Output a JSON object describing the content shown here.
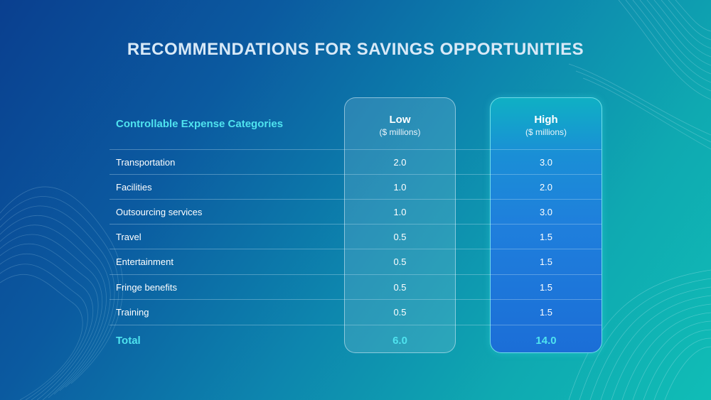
{
  "title": "RECOMMENDATIONS FOR SAVINGS OPPORTUNITIES",
  "table": {
    "category_header": "Controllable Expense Categories",
    "low_header": "Low",
    "low_sub": "($ millions)",
    "high_header": "High",
    "high_sub": "($ millions)",
    "rows": [
      {
        "name": "Transportation",
        "low": "2.0",
        "high": "3.0"
      },
      {
        "name": "Facilities",
        "low": "1.0",
        "high": "2.0"
      },
      {
        "name": "Outsourcing services",
        "low": "1.0",
        "high": "3.0"
      },
      {
        "name": "Travel",
        "low": "0.5",
        "high": "1.5"
      },
      {
        "name": "Entertainment",
        "low": "0.5",
        "high": "1.5"
      },
      {
        "name": "Fringe benefits",
        "low": "0.5",
        "high": "1.5"
      },
      {
        "name": "Training",
        "low": "0.5",
        "high": "1.5"
      }
    ],
    "total": {
      "name": "Total",
      "low": "6.0",
      "high": "14.0"
    }
  },
  "colors": {
    "accent": "#4fe3ef",
    "title": "#d8e9f7",
    "high_panel": "#1f7fdc"
  }
}
